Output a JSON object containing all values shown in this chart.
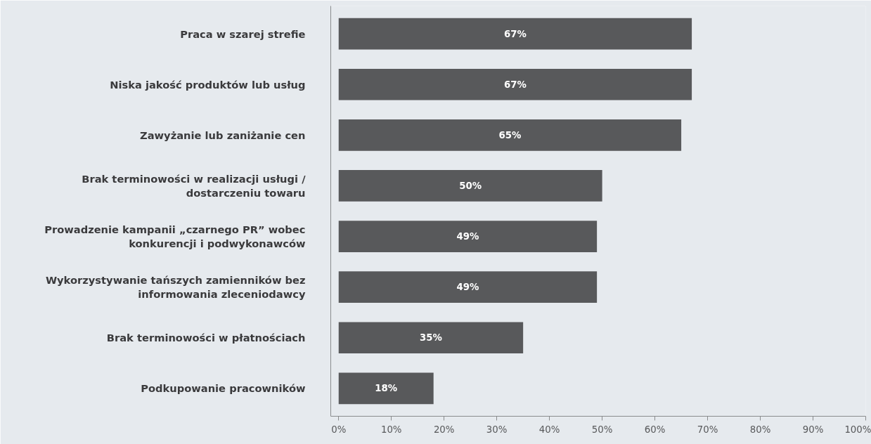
{
  "chart_data": {
    "type": "bar",
    "orientation": "horizontal",
    "categories": [
      "Praca w szarej strefie",
      "Niska jakość produktów lub usług",
      "Zawyżanie lub zaniżanie cen",
      "Brak terminowości w realizacji usługi / dostarczeniu towaru",
      "Prowadzenie kampanii „czarnego PR” wobec konkurencji i podwykonawców",
      "Wykorzystywanie tańszych zamienników bez informowania zleceniodawcy",
      "Brak terminowości w płatnościach",
      "Podkupowanie pracowników"
    ],
    "values": [
      67,
      67,
      65,
      50,
      49,
      49,
      35,
      18
    ],
    "value_labels": [
      "67%",
      "67%",
      "65%",
      "50%",
      "49%",
      "49%",
      "35%",
      "18%"
    ],
    "color": "#58595b",
    "xlim": [
      -1.5,
      100
    ],
    "xticks": [
      {
        "value": 0,
        "label": "0%"
      },
      {
        "value": 10,
        "label": "10%"
      },
      {
        "value": 20,
        "label": "20%"
      },
      {
        "value": 30,
        "label": "30%"
      },
      {
        "value": 40,
        "label": "40%"
      },
      {
        "value": 50,
        "label": "50%"
      },
      {
        "value": 60,
        "label": "60%"
      },
      {
        "value": 70,
        "label": "70%"
      },
      {
        "value": 80,
        "label": "80%"
      },
      {
        "value": 90,
        "label": "90%"
      },
      {
        "value": 100,
        "label": "100%"
      }
    ],
    "grid": false
  }
}
